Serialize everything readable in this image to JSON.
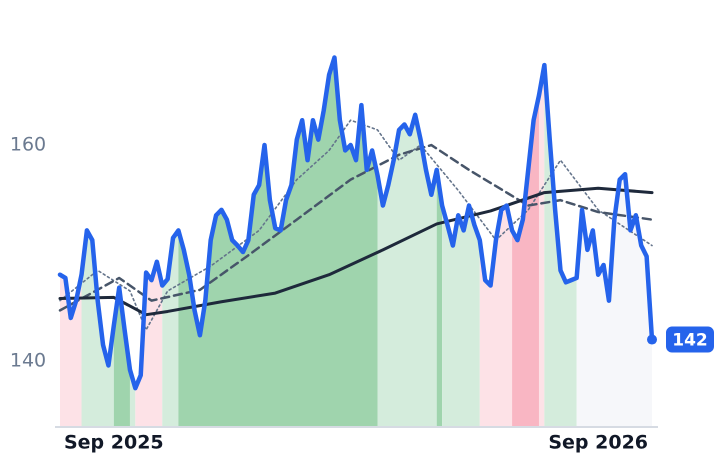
{
  "chart_data": {
    "type": "line",
    "categories": [
      null,
      null,
      null,
      null,
      null,
      null,
      null,
      null,
      null,
      null,
      "Sep 2025",
      null,
      null,
      null,
      null,
      null,
      null,
      null,
      null,
      null,
      null,
      null,
      null,
      null,
      null,
      null,
      null,
      null,
      null,
      null,
      null,
      null,
      null,
      null,
      null,
      null,
      null,
      null,
      null,
      null,
      null,
      null,
      null,
      null,
      null,
      null,
      null,
      null,
      null,
      null,
      null,
      null,
      null,
      null,
      null,
      null,
      null,
      null,
      null,
      null,
      null,
      null,
      null,
      null,
      null,
      null,
      null,
      null,
      null,
      null,
      null,
      null,
      null,
      null,
      null,
      null,
      null,
      null,
      null,
      null,
      null,
      null,
      null,
      null,
      null,
      null,
      null,
      null,
      null,
      null,
      null,
      null,
      null,
      null,
      null,
      null,
      null,
      null,
      null,
      null,
      "Sep 2026",
      null,
      null,
      null,
      null,
      null,
      null,
      null,
      null,
      null,
      null
    ],
    "ylim": [
      134,
      170
    ],
    "yticks": [
      140,
      160
    ],
    "series": [
      {
        "color": "#2563eb",
        "values": [
          148.0,
          147.7,
          144.0,
          145.6,
          148.0,
          152.1,
          151.2,
          145.6,
          141.5,
          139.6,
          143.3,
          146.8,
          142.9,
          139.2,
          137.5,
          138.7,
          148.2,
          147.5,
          149.2,
          147.0,
          147.6,
          151.4,
          152.1,
          150.3,
          148.0,
          144.7,
          142.4,
          145.6,
          151.2,
          153.5,
          154.0,
          153.1,
          151.2,
          150.7,
          150.1,
          151.2,
          155.4,
          156.3,
          160.0,
          154.9,
          152.3,
          152.1,
          154.9,
          156.3,
          160.5,
          162.3,
          158.6,
          162.3,
          160.5,
          163.2,
          166.5,
          168.1,
          162.3,
          159.5,
          160.0,
          158.6,
          163.7,
          157.7,
          159.5,
          157.2,
          154.4,
          156.3,
          158.6,
          161.4,
          161.9,
          161.0,
          162.8,
          160.5,
          157.7,
          155.4,
          157.7,
          154.4,
          152.6,
          150.7,
          153.5,
          152.1,
          154.4,
          152.6,
          151.2,
          147.5,
          147.0,
          151.2,
          154.0,
          154.4,
          152.1,
          151.2,
          153.1,
          157.7,
          162.3,
          164.6,
          167.4,
          160.5,
          154.0,
          148.4,
          147.3,
          147.5,
          147.7,
          154.0,
          150.3,
          152.1,
          148.0,
          148.9,
          145.6,
          153.1,
          156.8,
          157.3,
          152.1,
          153.5,
          150.7,
          149.7,
          142
        ]
      },
      {
        "color": "#1e293b",
        "style": "solid",
        "x": [
          0,
          10,
          16,
          20,
          30,
          40,
          50,
          60,
          70,
          80,
          90,
          100,
          110
        ],
        "values": [
          145.8,
          145.9,
          144.3,
          144.6,
          145.5,
          146.3,
          148.0,
          150.3,
          152.7,
          153.9,
          155.6,
          156.0,
          155.6
        ]
      },
      {
        "color": "#475569",
        "style": "dashed",
        "x": [
          0,
          11,
          17,
          26,
          35,
          44,
          54,
          63,
          69,
          76,
          87,
          93,
          100,
          110
        ],
        "values": [
          144.7,
          147.7,
          145.6,
          146.6,
          149.8,
          153.1,
          156.8,
          159.1,
          160.0,
          157.7,
          154.4,
          154.9,
          153.8,
          153.1
        ]
      },
      {
        "color": "#64748b",
        "style": "dotted",
        "x": [
          0,
          7,
          13,
          16,
          20,
          28,
          37,
          44,
          50,
          54,
          59,
          63,
          67,
          74,
          81,
          87,
          93,
          100,
          110
        ],
        "values": [
          145.6,
          148.4,
          146.5,
          142.9,
          146.5,
          148.8,
          152.1,
          156.8,
          159.5,
          162.3,
          161.4,
          158.6,
          160.0,
          155.8,
          151.2,
          154.0,
          158.6,
          154.0,
          150.7
        ]
      }
    ],
    "regions": [
      {
        "start": 0,
        "end": 4,
        "color": "#fde2e7"
      },
      {
        "start": 4,
        "end": 10,
        "color": "#d4ecdc"
      },
      {
        "start": 10,
        "end": 13,
        "color": "#9fd4ad"
      },
      {
        "start": 13,
        "end": 14,
        "color": "#d4ecdc"
      },
      {
        "start": 14,
        "end": 19,
        "color": "#fde2e7"
      },
      {
        "start": 19,
        "end": 22,
        "color": "#d4ecdc"
      },
      {
        "start": 22,
        "end": 59,
        "color": "#9fd4ad"
      },
      {
        "start": 59,
        "end": 70,
        "color": "#d4ecdc"
      },
      {
        "start": 70,
        "end": 71,
        "color": "#9fd4ad"
      },
      {
        "start": 71,
        "end": 78,
        "color": "#d4ecdc"
      },
      {
        "start": 78,
        "end": 84,
        "color": "#fde2e7"
      },
      {
        "start": 84,
        "end": 89,
        "color": "#f9b6c3"
      },
      {
        "start": 89,
        "end": 90,
        "color": "#fde2e7"
      },
      {
        "start": 90,
        "end": 96,
        "color": "#d4ecdc"
      },
      {
        "start": 96,
        "end": 110,
        "color": "#f6f7fa"
      }
    ],
    "last_label": "142"
  }
}
